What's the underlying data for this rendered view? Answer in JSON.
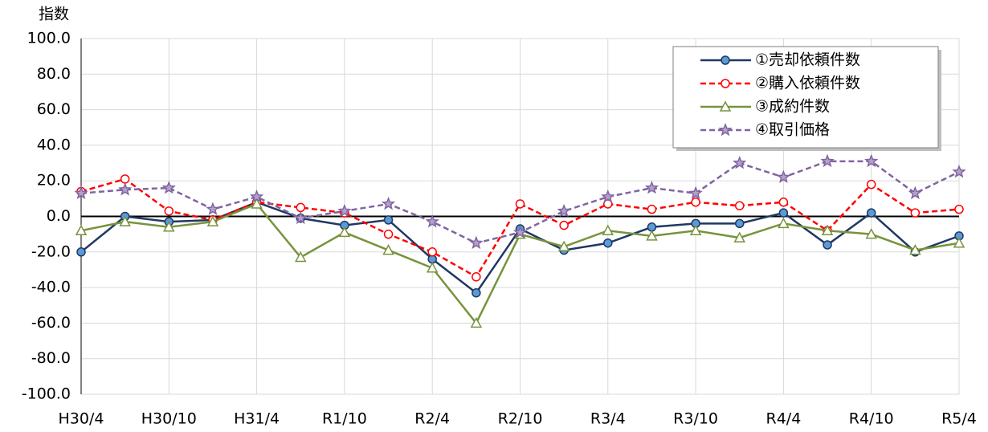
{
  "chart_data": {
    "type": "line",
    "y_label": "指数",
    "categories": [
      "H30/4",
      null,
      "H30/10",
      null,
      "H31/4",
      null,
      "R1/10",
      null,
      "R2/4",
      null,
      "R2/10",
      null,
      "R3/4",
      null,
      "R3/10",
      null,
      "R4/4",
      null,
      "R4/10",
      null,
      "R5/4"
    ],
    "series": [
      {
        "name": "①売却依頼件数",
        "color": "#1f3864",
        "marker_color": "#5b9bd5",
        "marker": "circle",
        "dash": false,
        "values": [
          -20,
          0,
          -3,
          -2,
          8,
          -1,
          -5,
          -2,
          -24,
          -43,
          -7,
          -19,
          -15,
          -6,
          -4,
          -4,
          2,
          -16,
          2,
          -20,
          -11
        ]
      },
      {
        "name": "②購入依頼件数",
        "color": "#ff0000",
        "marker_color": "#ffffff",
        "marker": "circle",
        "dash": true,
        "values": [
          14,
          21,
          3,
          -2,
          8,
          5,
          2,
          -10,
          -20,
          -34,
          7,
          -5,
          7,
          4,
          8,
          6,
          8,
          -8,
          18,
          2,
          4
        ]
      },
      {
        "name": "③成約件数",
        "color": "#77933c",
        "marker_color": "#ffffff",
        "marker": "triangle",
        "dash": false,
        "values": [
          -8,
          -3,
          -6,
          -3,
          7,
          -23,
          -9,
          -19,
          -29,
          -60,
          -10,
          -17,
          -8,
          -11,
          -8,
          -12,
          -4,
          -8,
          -10,
          -19,
          -15
        ]
      },
      {
        "name": "④取引価格",
        "color": "#8064a2",
        "marker_color": "#b3a2c7",
        "marker": "star",
        "dash": true,
        "values": [
          13,
          15,
          16,
          4,
          11,
          -1,
          3,
          7,
          -3,
          -15,
          -9,
          3,
          11,
          16,
          13,
          30,
          22,
          31,
          31,
          13,
          25
        ]
      }
    ],
    "ylim": [
      -100,
      100
    ],
    "yticks": [
      {
        "value": -100,
        "label": "-100.0"
      },
      {
        "value": -80,
        "label": "-80.0"
      },
      {
        "value": -60,
        "label": "-60.0"
      },
      {
        "value": -40,
        "label": "-40.0"
      },
      {
        "value": -20,
        "label": "-20.0"
      },
      {
        "value": 0,
        "label": "0.0"
      },
      {
        "value": 20,
        "label": "20.0"
      },
      {
        "value": 40,
        "label": "40.0"
      },
      {
        "value": 60,
        "label": "60.0"
      },
      {
        "value": 80,
        "label": "80.0"
      },
      {
        "value": 100,
        "label": "100.0"
      }
    ],
    "grid": true,
    "legend": "top-right"
  }
}
